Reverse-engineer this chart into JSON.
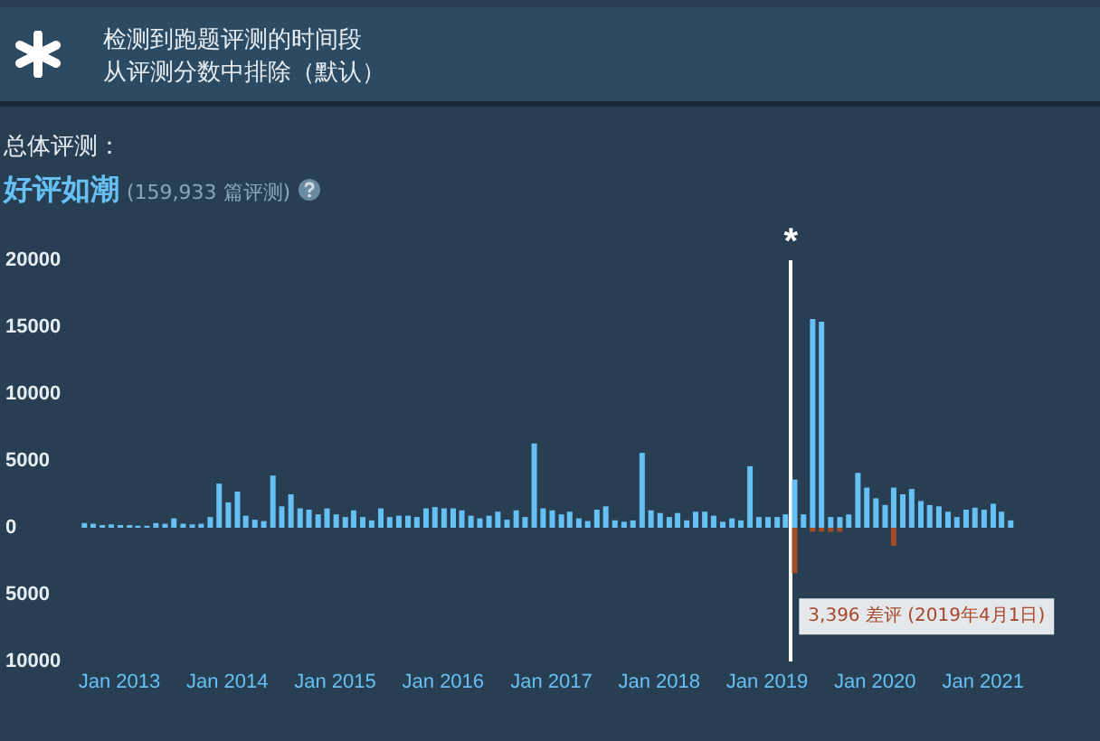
{
  "chart_data": {
    "type": "bar",
    "title": "总体评测：",
    "subtitle": "好评如潮",
    "annotations": [
      "(159,933 篇评测)",
      "检测到跑题评测的时间段",
      "从评测分数中排除（默认）",
      {
        "text": "3,396 差评 (2019年4月1日)",
        "x": "2019-04",
        "y": -3396
      }
    ],
    "x": [
      "2012-09",
      "2012-10",
      "2012-11",
      "2012-12",
      "2013-01",
      "2013-02",
      "2013-03",
      "2013-04",
      "2013-05",
      "2013-06",
      "2013-07",
      "2013-08",
      "2013-09",
      "2013-10",
      "2013-11",
      "2013-12",
      "2014-01",
      "2014-02",
      "2014-03",
      "2014-04",
      "2014-05",
      "2014-06",
      "2014-07",
      "2014-08",
      "2014-09",
      "2014-10",
      "2014-11",
      "2014-12",
      "2015-01",
      "2015-02",
      "2015-03",
      "2015-04",
      "2015-05",
      "2015-06",
      "2015-07",
      "2015-08",
      "2015-09",
      "2015-10",
      "2015-11",
      "2015-12",
      "2016-01",
      "2016-02",
      "2016-03",
      "2016-04",
      "2016-05",
      "2016-06",
      "2016-07",
      "2016-08",
      "2016-09",
      "2016-10",
      "2016-11",
      "2016-12",
      "2017-01",
      "2017-02",
      "2017-03",
      "2017-04",
      "2017-05",
      "2017-06",
      "2017-07",
      "2017-08",
      "2017-09",
      "2017-10",
      "2017-11",
      "2017-12",
      "2018-01",
      "2018-02",
      "2018-03",
      "2018-04",
      "2018-05",
      "2018-06",
      "2018-07",
      "2018-08",
      "2018-09",
      "2018-10",
      "2018-11",
      "2018-12",
      "2019-01",
      "2019-02",
      "2019-03",
      "2019-04",
      "2019-05",
      "2019-06",
      "2019-07",
      "2019-08",
      "2019-09",
      "2019-10",
      "2019-11",
      "2019-12",
      "2020-01",
      "2020-02",
      "2020-03",
      "2020-04",
      "2020-05",
      "2020-06",
      "2020-07",
      "2020-08",
      "2020-09",
      "2020-10",
      "2020-11",
      "2020-12",
      "2021-01",
      "2021-02",
      "2021-03",
      "2021-04"
    ],
    "stacked": true,
    "series": [
      {
        "color": "#66c0f4",
        "values": [
          350,
          300,
          200,
          250,
          200,
          200,
          150,
          150,
          350,
          300,
          700,
          300,
          250,
          300,
          800,
          3300,
          1900,
          2700,
          900,
          600,
          500,
          3900,
          1600,
          2500,
          1450,
          1350,
          1000,
          1450,
          1000,
          800,
          1300,
          800,
          550,
          1450,
          800,
          900,
          900,
          800,
          1450,
          1550,
          1450,
          1450,
          1300,
          900,
          700,
          900,
          1200,
          600,
          1300,
          800,
          6300,
          1450,
          1300,
          1000,
          1200,
          700,
          500,
          1350,
          1600,
          550,
          450,
          550,
          5600,
          1300,
          1100,
          800,
          1100,
          550,
          1200,
          1200,
          900,
          450,
          700,
          550,
          4600,
          800,
          800,
          800,
          1000,
          3600,
          1000,
          15600,
          15400,
          800,
          800,
          1000,
          4100,
          3000,
          2200,
          1700,
          3000,
          2500,
          2900,
          2000,
          1700,
          1600,
          1200,
          800,
          1350,
          1500,
          1350,
          1800,
          1200,
          550
        ]
      },
      {
        "color": "#a34c25",
        "values": [
          null,
          null,
          null,
          null,
          null,
          null,
          null,
          null,
          null,
          null,
          null,
          null,
          null,
          null,
          null,
          null,
          null,
          null,
          null,
          null,
          null,
          null,
          null,
          null,
          null,
          null,
          null,
          null,
          null,
          null,
          null,
          null,
          null,
          null,
          null,
          null,
          null,
          null,
          null,
          null,
          null,
          null,
          null,
          null,
          null,
          null,
          null,
          null,
          null,
          null,
          null,
          null,
          null,
          null,
          null,
          null,
          null,
          null,
          null,
          null,
          null,
          null,
          null,
          null,
          null,
          null,
          null,
          null,
          null,
          null,
          null,
          null,
          null,
          null,
          null,
          null,
          null,
          null,
          null,
          -3396,
          null,
          -300,
          -300,
          -300,
          -300,
          null,
          null,
          null,
          null,
          null,
          -1350,
          null,
          null,
          null,
          null,
          null,
          null,
          null,
          null,
          null,
          null,
          null,
          null,
          null
        ]
      }
    ],
    "xlim": [
      "2012-08",
      "2021-05"
    ],
    "xticks": [
      {
        "value": "2013-01",
        "label": "Jan 2013"
      },
      {
        "value": "2014-01",
        "label": "Jan 2014"
      },
      {
        "value": "2015-01",
        "label": "Jan 2015"
      },
      {
        "value": "2016-01",
        "label": "Jan 2016"
      },
      {
        "value": "2017-01",
        "label": "Jan 2017"
      },
      {
        "value": "2018-01",
        "label": "Jan 2018"
      },
      {
        "value": "2019-01",
        "label": "Jan 2019"
      },
      {
        "value": "2020-01",
        "label": "Jan 2020"
      },
      {
        "value": "2021-01",
        "label": "Jan 2021"
      }
    ],
    "ylim": [
      -10000,
      20000
    ],
    "yticks": [
      20000,
      15000,
      10000,
      5000,
      0,
      {
        "value": -5000,
        "label": "5000"
      },
      {
        "value": -10000,
        "label": "10000"
      }
    ],
    "ref_lines": [
      {
        "axis": "x",
        "value": "2019-04",
        "label": "*",
        "color": "#ffffff"
      }
    ],
    "grid": false
  }
}
